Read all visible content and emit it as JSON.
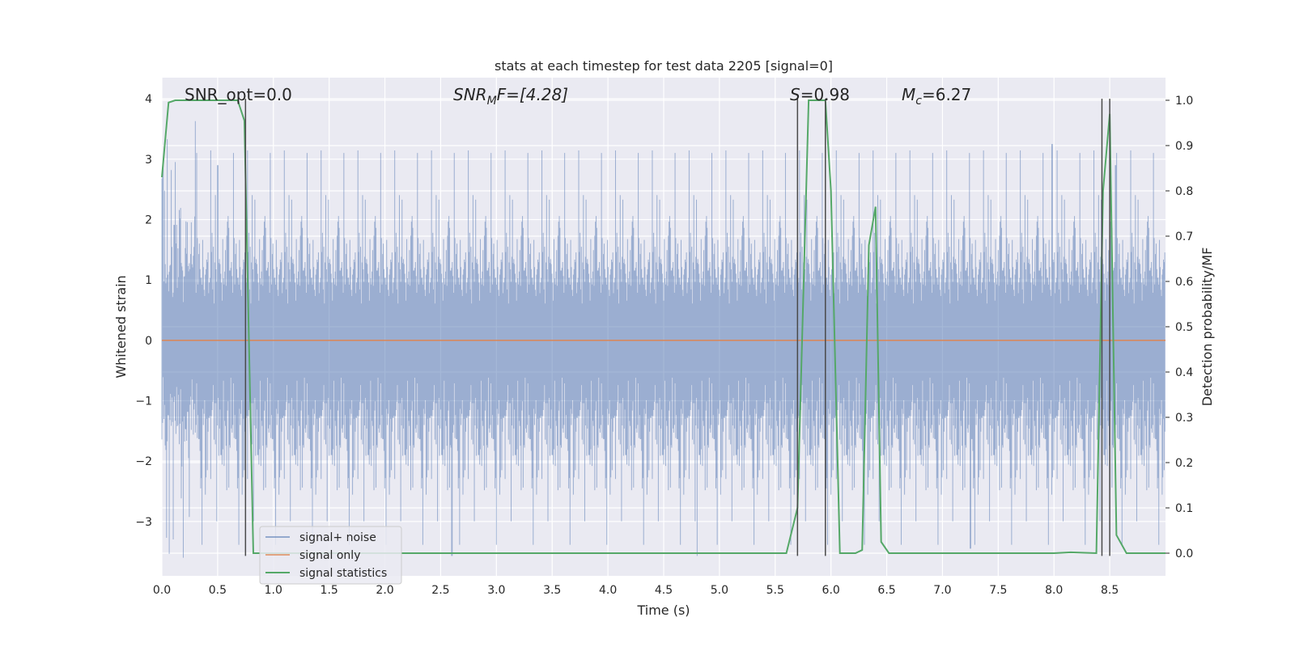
{
  "chart_data": {
    "type": "line",
    "title": "stats at each timestep for test data 2205 [signal=0]",
    "xlabel": "Time (s)",
    "ylabel": "Whitened strain",
    "ylabel_right": "Detection probability/MF",
    "xlim": [
      0.0,
      9.0
    ],
    "ylim": [
      -3.9,
      4.35
    ],
    "ylim_right": [
      -0.05,
      1.05
    ],
    "x_ticks": [
      "0.0",
      "0.5",
      "1.0",
      "1.5",
      "2.0",
      "2.5",
      "3.0",
      "3.5",
      "4.0",
      "4.5",
      "5.0",
      "5.5",
      "6.0",
      "6.5",
      "7.0",
      "7.5",
      "8.0",
      "8.5"
    ],
    "y_ticks_left": [
      "−3",
      "−2",
      "−1",
      "0",
      "1",
      "2",
      "3",
      "4"
    ],
    "y_ticks_right": [
      "0.0",
      "0.1",
      "0.2",
      "0.3",
      "0.4",
      "0.5",
      "0.6",
      "0.7",
      "0.8",
      "0.9",
      "1.0"
    ],
    "annotations": {
      "snr_opt": "SNR_opt=0.0",
      "snr_mf_main": "SNR",
      "snr_mf_sub": "M",
      "snr_mf_rest": "F=[4.28]",
      "s_var": "S",
      "s_val": "=0.98",
      "mc_var": "M",
      "mc_sub": "c",
      "mc_val": "=6.27"
    },
    "grid": true,
    "legend_position": "lower-left",
    "series": [
      {
        "name": "signal+ noise",
        "color": "#4c72b0",
        "style": "noise band, approx. white noise with std ~0.75",
        "typical_range": [
          -2.5,
          2.5
        ],
        "peaks": [
          [
            0.3,
            3.63
          ],
          [
            0.5,
            2.9
          ],
          [
            2.6,
            -3.57
          ],
          [
            4.8,
            -3.57
          ],
          [
            7.25,
            -3.45
          ],
          [
            8.55,
            2.9
          ],
          [
            7.98,
            3.25
          ]
        ]
      },
      {
        "name": "signal only",
        "color": "#dd8452",
        "x": [
          0.0,
          9.0
        ],
        "y": [
          0.0,
          0.0
        ]
      },
      {
        "name": "signal statistics",
        "color": "#55a868",
        "axis": "right",
        "x": [
          0.0,
          0.06,
          0.12,
          0.3,
          0.5,
          0.68,
          0.74,
          0.82,
          1.5,
          3.0,
          5.0,
          5.6,
          5.65,
          5.7,
          5.8,
          5.95,
          6.0,
          6.08,
          6.22,
          6.28,
          6.34,
          6.4,
          6.45,
          6.52,
          7.0,
          8.0,
          8.15,
          8.38,
          8.44,
          8.5,
          8.56,
          8.65,
          9.0
        ],
        "y": [
          0.83,
          0.995,
          1.0,
          1.0,
          1.0,
          1.0,
          0.955,
          0.0,
          0.0,
          0.0,
          0.0,
          0.0,
          0.05,
          0.1,
          1.0,
          1.0,
          0.8,
          0.0,
          0.0,
          0.007,
          0.68,
          0.765,
          0.025,
          0.0,
          0.0,
          0.0,
          0.002,
          0.0,
          0.8,
          0.97,
          0.04,
          0.0,
          0.0
        ]
      }
    ],
    "vertical_markers": {
      "color": "#4a4a4a",
      "x": [
        0.75,
        5.7,
        5.95,
        8.43,
        8.5
      ],
      "ymin": -3.57,
      "ymax": 4.0
    }
  },
  "legend": {
    "items": [
      {
        "label": "signal+ noise",
        "color": "#4c72b0"
      },
      {
        "label": "signal only",
        "color": "#dd8452"
      },
      {
        "label": "signal statistics",
        "color": "#55a868"
      }
    ]
  }
}
